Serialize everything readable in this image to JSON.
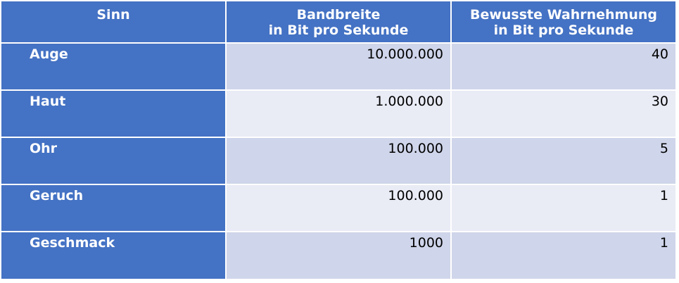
{
  "table": {
    "headers": [
      {
        "line1": "Sinn",
        "line2": ""
      },
      {
        "line1": "Bandbreite",
        "line2": "in Bit pro Sekunde"
      },
      {
        "line1": "Bewusste Wahrnehmung",
        "line2": "in Bit pro Sekunde"
      }
    ],
    "rows": [
      {
        "sense": "Auge",
        "bandwidth": "10.000.000",
        "conscious": "40"
      },
      {
        "sense": "Haut",
        "bandwidth": "1.000.000",
        "conscious": "30"
      },
      {
        "sense": "Ohr",
        "bandwidth": "100.000",
        "conscious": "5"
      },
      {
        "sense": "Geruch",
        "bandwidth": "100.000",
        "conscious": "1"
      },
      {
        "sense": "Geschmack",
        "bandwidth": "1000",
        "conscious": "1"
      }
    ]
  },
  "colors": {
    "header": "#4472c4",
    "row_odd": "#cfd5ea",
    "row_even": "#e9ebf5"
  }
}
